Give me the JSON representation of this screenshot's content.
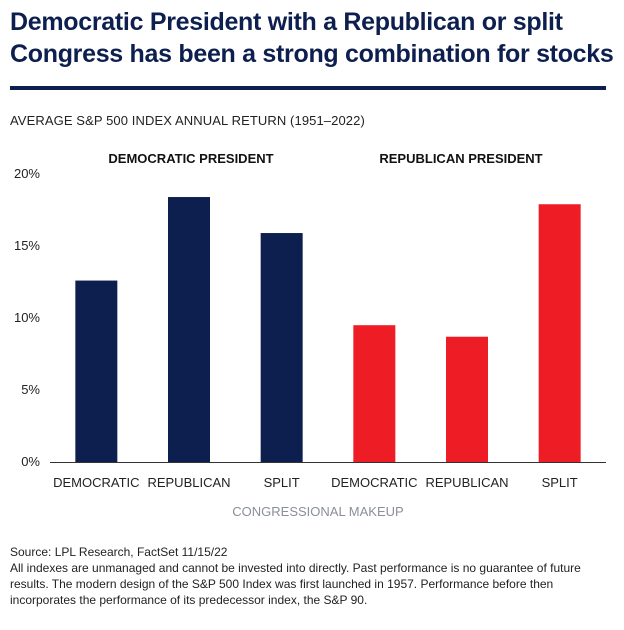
{
  "header": {
    "title_line1": "Democratic President with a Republican or split",
    "title_line2": "Congress has been a strong combination for stocks",
    "subtitle": "AVERAGE S&P 500 INDEX ANNUAL RETURN (1951–2022)"
  },
  "groups": {
    "democratic": "DEMOCRATIC PRESIDENT",
    "republican": "REPUBLICAN PRESIDENT"
  },
  "colors": {
    "navy": "#0d1f4f",
    "red": "#ee1c25",
    "axis": "#333333",
    "xlabel": "#8a8f99"
  },
  "chart_data": {
    "type": "bar",
    "categories": [
      "DEMOCRATIC",
      "REPUBLICAN",
      "SPLIT",
      "DEMOCRATIC",
      "REPUBLICAN",
      "SPLIT"
    ],
    "series": [
      {
        "values": [
          12.6,
          18.4,
          15.9,
          9.5,
          8.7,
          17.9
        ]
      }
    ],
    "bar_groups": [
      "democratic",
      "democratic",
      "democratic",
      "republican",
      "republican",
      "republican"
    ],
    "xlabel": "CONGRESSIONAL MAKEUP",
    "ylabel": "",
    "ylim": [
      0,
      20
    ],
    "yticks": [
      0,
      5,
      10,
      15,
      20
    ],
    "ytick_labels": [
      "0%",
      "5%",
      "10%",
      "15%",
      "20%"
    ],
    "grid": false,
    "legend": "none"
  },
  "footer": {
    "source": "Source: LPL Research, FactSet 11/15/22",
    "disclaimer": "All indexes are unmanaged and cannot be invested into directly. Past performance is no guarantee of future results. The modern design of the S&P 500 Index was first launched in 1957. Performance before then incorporates the performance of its predecessor index, the S&P 90."
  }
}
